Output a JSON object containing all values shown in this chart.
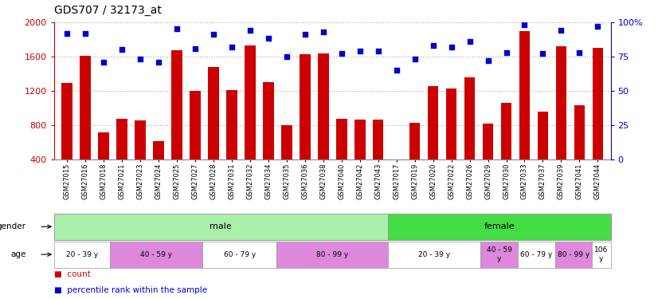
{
  "title": "GDS707 / 32173_at",
  "samples": [
    "GSM27015",
    "GSM27016",
    "GSM27018",
    "GSM27021",
    "GSM27023",
    "GSM27024",
    "GSM27025",
    "GSM27027",
    "GSM27028",
    "GSM27031",
    "GSM27032",
    "GSM27034",
    "GSM27035",
    "GSM27036",
    "GSM27038",
    "GSM27040",
    "GSM27042",
    "GSM27043",
    "GSM27017",
    "GSM27019",
    "GSM27020",
    "GSM27022",
    "GSM27026",
    "GSM27029",
    "GSM27030",
    "GSM27033",
    "GSM27037",
    "GSM27039",
    "GSM27041",
    "GSM27044"
  ],
  "counts": [
    1290,
    1610,
    720,
    880,
    860,
    620,
    1670,
    1200,
    1480,
    1210,
    1730,
    1300,
    800,
    1625,
    1640,
    880,
    870,
    870,
    390,
    830,
    1260,
    1230,
    1360,
    820,
    1060,
    1900,
    960,
    1720,
    1030,
    1700
  ],
  "percentiles": [
    92,
    92,
    71,
    80,
    73,
    71,
    95,
    81,
    91,
    82,
    94,
    88,
    75,
    91,
    93,
    77,
    79,
    79,
    65,
    73,
    83,
    82,
    86,
    72,
    78,
    98,
    77,
    94,
    78,
    97
  ],
  "bar_color": "#cc0000",
  "dot_color": "#0000cc",
  "ylim_left": [
    400,
    2000
  ],
  "ylim_right": [
    0,
    100
  ],
  "yticks_left": [
    400,
    800,
    1200,
    1600,
    2000
  ],
  "ytick_labels_left": [
    "400",
    "800",
    "1200",
    "1600",
    "2000"
  ],
  "yticks_right": [
    0,
    25,
    50,
    75,
    100
  ],
  "ytick_labels_right": [
    "0",
    "25",
    "50",
    "75",
    "100%"
  ],
  "gender_male_count": 18,
  "gender_male_label": "male",
  "gender_female_label": "female",
  "gender_male_color": "#aaf0aa",
  "gender_female_color": "#44dd44",
  "age_male_boundaries": [
    0,
    3,
    8,
    12,
    18
  ],
  "age_male_labels": [
    "20 - 39 y",
    "40 - 59 y",
    "60 - 79 y",
    "80 - 99 y"
  ],
  "age_male_colors": [
    "#ffffff",
    "#dd88dd",
    "#ffffff",
    "#dd88dd"
  ],
  "age_female_boundaries": [
    18,
    23,
    25,
    27,
    29,
    30
  ],
  "age_female_labels": [
    "20 - 39 y",
    "40 - 59\ny",
    "60 - 79 y",
    "80 - 99 y",
    "106\ny"
  ],
  "age_female_colors": [
    "#ffffff",
    "#dd88dd",
    "#ffffff",
    "#dd88dd",
    "#ffffff"
  ],
  "legend_count_label": "count",
  "legend_percentile_label": "percentile rank within the sample",
  "title_fontsize": 10,
  "axis_tick_color_left": "#cc0000",
  "axis_tick_color_right": "#0000cc",
  "grid_color": "#aaaaaa"
}
